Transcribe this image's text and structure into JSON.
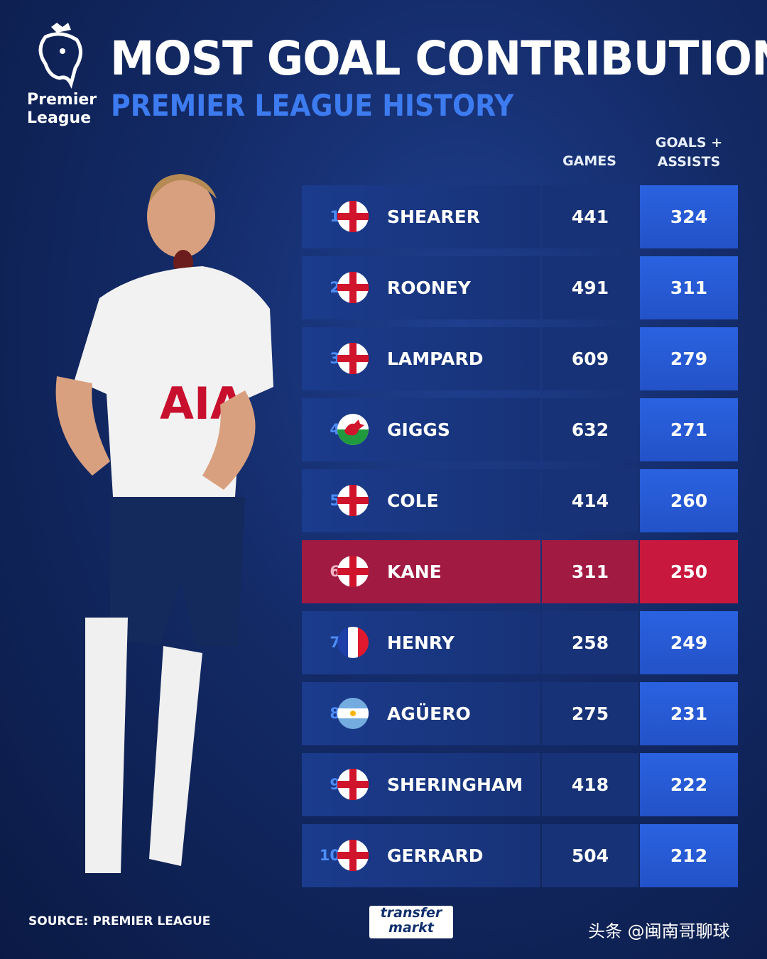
{
  "header": {
    "logo_line1": "Premier",
    "logo_line2": "League",
    "title": "MOST GOAL CONTRIBUTIONS",
    "subtitle": "PREMIER LEAGUE HISTORY"
  },
  "table": {
    "columns": {
      "games": "GAMES",
      "goals_assists": "GOALS + ASSISTS"
    },
    "rows": [
      {
        "rank": 1,
        "name": "SHEARER",
        "games": 441,
        "goals_assists": 324
      },
      {
        "rank": 2,
        "name": "ROONEY",
        "games": 491,
        "goals_assists": 311
      },
      {
        "rank": 3,
        "name": "LAMPARD",
        "games": 609,
        "goals_assists": 279
      },
      {
        "rank": 4,
        "name": "GIGGS",
        "games": 632,
        "goals_assists": 271
      },
      {
        "rank": 5,
        "name": "COLE",
        "games": 414,
        "goals_assists": 260
      },
      {
        "rank": 6,
        "name": "KANE",
        "games": 311,
        "goals_assists": 250
      },
      {
        "rank": 7,
        "name": "HENRY",
        "games": 258,
        "goals_assists": 249
      },
      {
        "rank": 8,
        "name": "AGÜERO",
        "games": 275,
        "goals_assists": 231
      },
      {
        "rank": 9,
        "name": "SHERINGHAM",
        "games": 418,
        "goals_assists": 222
      },
      {
        "rank": 10,
        "name": "GERRARD",
        "games": 504,
        "goals_assists": 212
      }
    ]
  },
  "footer": {
    "source": "SOURCE: PREMIER LEAGUE",
    "brand_line1": "transfer",
    "brand_line2": "markt",
    "watermark": "头条 @闽南哥聊球"
  }
}
